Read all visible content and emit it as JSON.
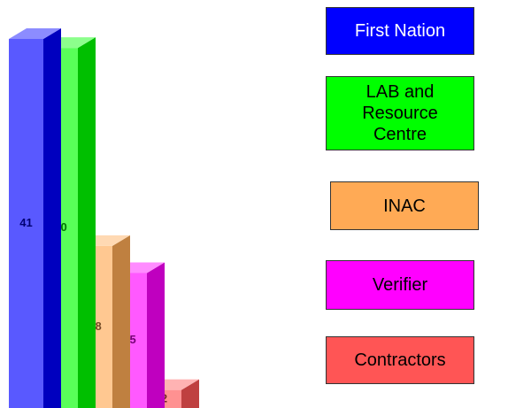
{
  "chart_data": {
    "type": "bar3d",
    "categories": [
      "First Nation",
      "LAB and Resource Centre",
      "INAC",
      "Verifier",
      "Contractors"
    ],
    "values": [
      41,
      40,
      18,
      15,
      2
    ],
    "colors": [
      "#0000ff",
      "#00ff00",
      "#ffaa55",
      "#ff00ff",
      "#ff5555"
    ],
    "legend": "right"
  }
}
